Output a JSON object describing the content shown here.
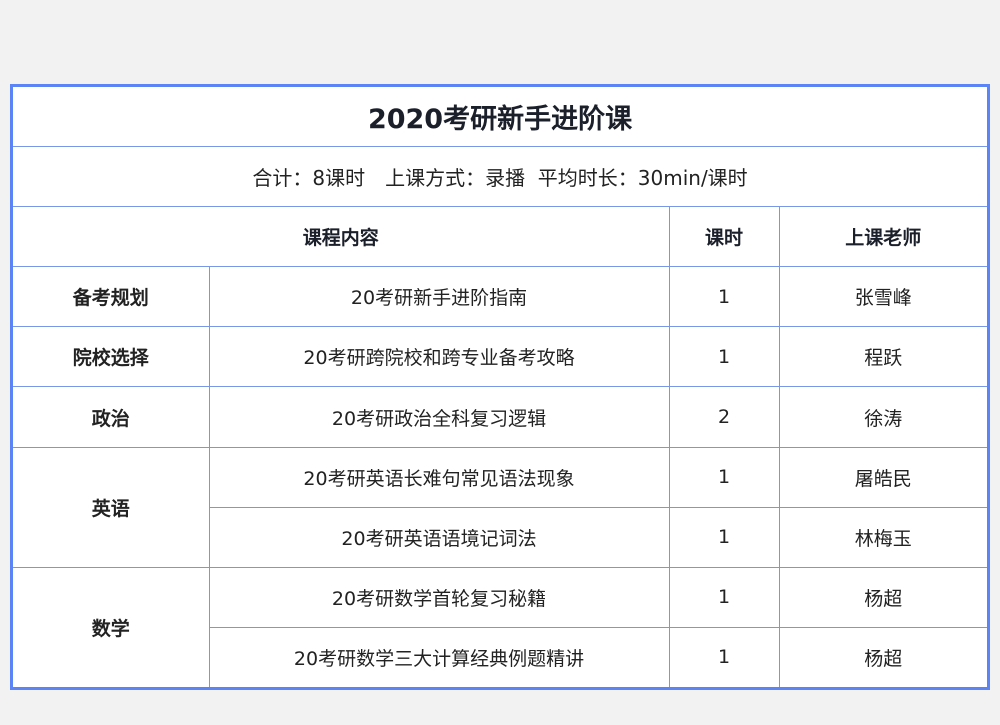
{
  "title": "2020考研新手进阶课",
  "summary": "合计：8课时　上课方式：录播  平均时长：30min/课时",
  "headers": {
    "content": "课程内容",
    "hours": "课时",
    "teacher": "上课老师"
  },
  "categories": [
    "备考规划",
    "院校选择",
    "政治",
    "英语",
    "数学"
  ],
  "rows": [
    {
      "content": "20考研新手进阶指南",
      "hours": "1",
      "teacher": "张雪峰"
    },
    {
      "content": "20考研跨院校和跨专业备考攻略",
      "hours": "1",
      "teacher": "程跃"
    },
    {
      "content": "20考研政治全科复习逻辑",
      "hours": "2",
      "teacher": "徐涛"
    },
    {
      "content": "20考研英语长难句常见语法现象",
      "hours": "1",
      "teacher": "屠皓民"
    },
    {
      "content": "20考研英语语境记词法",
      "hours": "1",
      "teacher": "林梅玉"
    },
    {
      "content": "20考研数学首轮复习秘籍",
      "hours": "1",
      "teacher": "杨超"
    },
    {
      "content": "20考研数学三大计算经典例题精讲",
      "hours": "1",
      "teacher": "杨超"
    }
  ],
  "colors": {
    "border": "#5b84f7",
    "grid": "#7a96e6"
  }
}
